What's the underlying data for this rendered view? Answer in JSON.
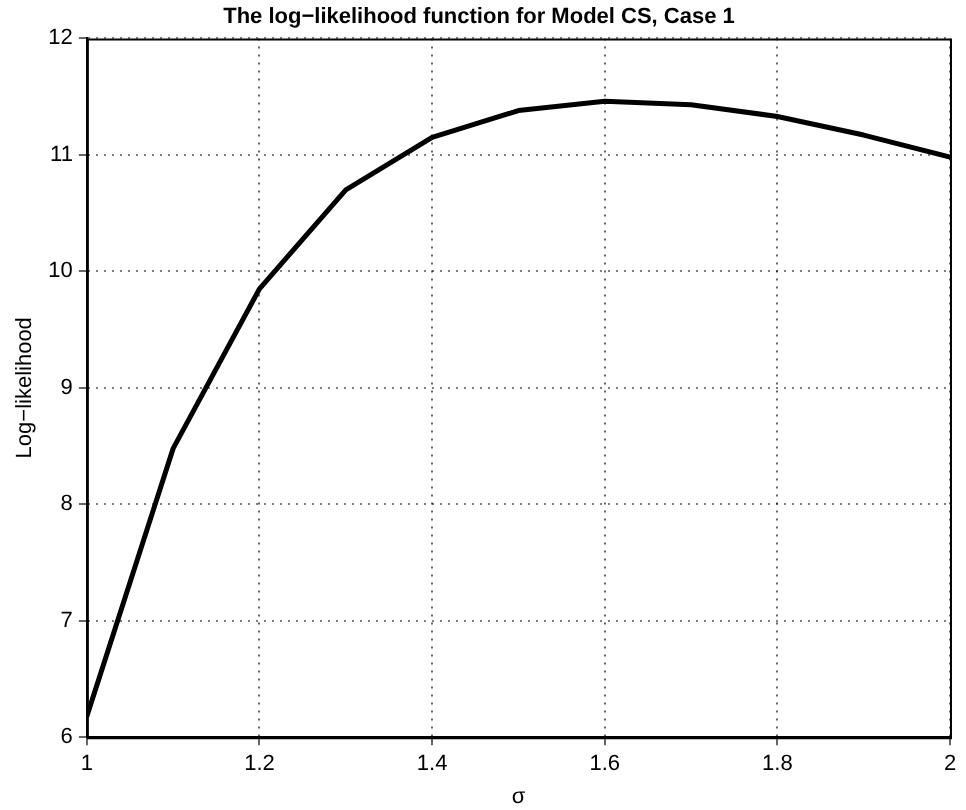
{
  "chart_data": {
    "type": "line",
    "title": "The log−likelihood function for Model CS, Case 1",
    "xlabel": "σ",
    "ylabel": "Log−likelihood",
    "x": [
      1,
      1.1,
      1.2,
      1.3,
      1.4,
      1.5,
      1.6,
      1.7,
      1.8,
      1.9,
      2
    ],
    "series": [
      {
        "color": "#000000",
        "values": [
          6.18,
          8.48,
          9.85,
          10.7,
          11.15,
          11.38,
          11.46,
          11.43,
          11.33,
          11.17,
          10.98
        ]
      }
    ],
    "xlim": [
      1,
      2
    ],
    "xticks": [
      1,
      1.2,
      1.4,
      1.6,
      1.8,
      2
    ],
    "ylim": [
      6,
      12
    ],
    "yticks": [
      6,
      7,
      8,
      9,
      10,
      11,
      12
    ],
    "grid": true,
    "legend": false,
    "marker": "none",
    "line_style": "solid"
  }
}
